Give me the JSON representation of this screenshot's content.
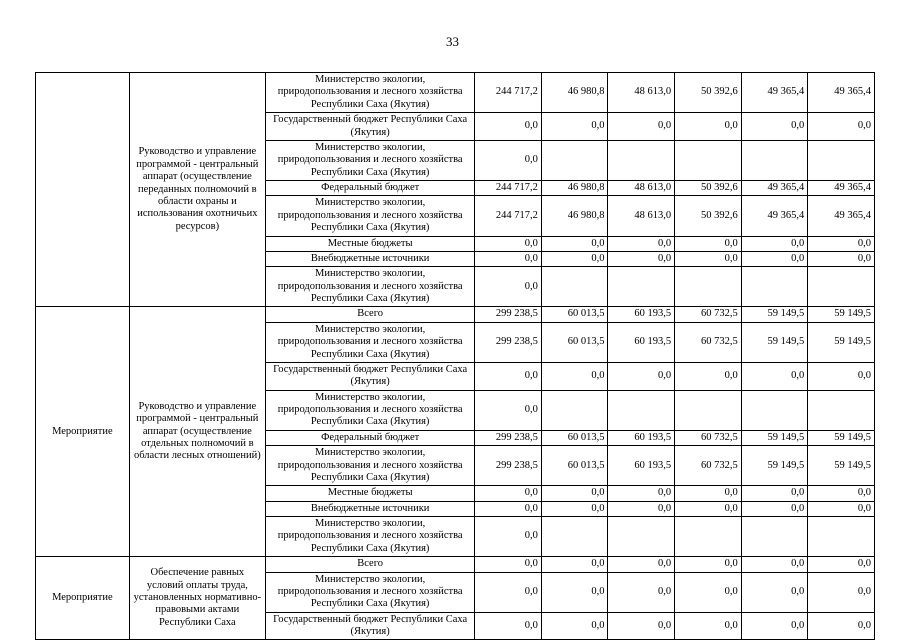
{
  "page": {
    "number": "33"
  },
  "table": {
    "blocks": [
      {
        "category": "",
        "program": "Руководство и управление программой - центральный аппарат (осуществление переданных полномочий в области охраны и использования охотничьих ресурсов)",
        "rows": [
          {
            "source": "Министерство экологии, природопользования и лесного хозяйства Республики Саха (Якутия)",
            "values": [
              "244 717,2",
              "46 980,8",
              "48 613,0",
              "50 392,6",
              "49 365,4",
              "49 365,4"
            ]
          },
          {
            "source": "Государственный бюджет Республики Саха (Якутия)",
            "values": [
              "0,0",
              "0,0",
              "0,0",
              "0,0",
              "0,0",
              "0,0"
            ]
          },
          {
            "source": "Министерство экологии, природопользования и лесного хозяйства Республики Саха (Якутия)",
            "values": [
              "0,0",
              "",
              "",
              "",
              "",
              ""
            ]
          },
          {
            "source": "Федеральный бюджет",
            "values": [
              "244 717,2",
              "46 980,8",
              "48 613,0",
              "50 392,6",
              "49 365,4",
              "49 365,4"
            ]
          },
          {
            "source": "Министерство экологии, природопользования и лесного хозяйства Республики Саха (Якутия)",
            "values": [
              "244 717,2",
              "46 980,8",
              "48 613,0",
              "50 392,6",
              "49 365,4",
              "49 365,4"
            ]
          },
          {
            "source": "Местные бюджеты",
            "values": [
              "0,0",
              "0,0",
              "0,0",
              "0,0",
              "0,0",
              "0,0"
            ]
          },
          {
            "source": "Внебюджетные источники",
            "values": [
              "0,0",
              "0,0",
              "0,0",
              "0,0",
              "0,0",
              "0,0"
            ]
          },
          {
            "source": "Министерство экологии, природопользования и лесного хозяйства Республики Саха (Якутия)",
            "values": [
              "0,0",
              "",
              "",
              "",
              "",
              ""
            ]
          }
        ]
      },
      {
        "category": "Мероприятие",
        "program": "Руководство и управление программой - центральный аппарат (осуществление отдельных полномочий в области лесных отношений)",
        "rows": [
          {
            "source": "Всего",
            "values": [
              "299 238,5",
              "60 013,5",
              "60 193,5",
              "60 732,5",
              "59 149,5",
              "59 149,5"
            ]
          },
          {
            "source": "Министерство экологии, природопользования и лесного хозяйства Республики Саха (Якутия)",
            "values": [
              "299 238,5",
              "60 013,5",
              "60 193,5",
              "60 732,5",
              "59 149,5",
              "59 149,5"
            ]
          },
          {
            "source": "Государственный бюджет Республики Саха (Якутия)",
            "values": [
              "0,0",
              "0,0",
              "0,0",
              "0,0",
              "0,0",
              "0,0"
            ]
          },
          {
            "source": "Министерство экологии, природопользования и лесного хозяйства Республики Саха (Якутия)",
            "values": [
              "0,0",
              "",
              "",
              "",
              "",
              ""
            ]
          },
          {
            "source": "Федеральный бюджет",
            "values": [
              "299 238,5",
              "60 013,5",
              "60 193,5",
              "60 732,5",
              "59 149,5",
              "59 149,5"
            ]
          },
          {
            "source": "Министерство экологии, природопользования и лесного хозяйства Республики Саха (Якутия)",
            "values": [
              "299 238,5",
              "60 013,5",
              "60 193,5",
              "60 732,5",
              "59 149,5",
              "59 149,5"
            ]
          },
          {
            "source": "Местные бюджеты",
            "values": [
              "0,0",
              "0,0",
              "0,0",
              "0,0",
              "0,0",
              "0,0"
            ]
          },
          {
            "source": "Внебюджетные источники",
            "values": [
              "0,0",
              "0,0",
              "0,0",
              "0,0",
              "0,0",
              "0,0"
            ]
          },
          {
            "source": "Министерство экологии, природопользования и лесного хозяйства Республики Саха (Якутия)",
            "values": [
              "0,0",
              "",
              "",
              "",
              "",
              ""
            ]
          }
        ]
      },
      {
        "category": "Мероприятие",
        "program": "Обеспечение равных условий оплаты труда, установленных нормативно-правовыми актами Республики Саха",
        "rows": [
          {
            "source": "Всего",
            "values": [
              "0,0",
              "0,0",
              "0,0",
              "0,0",
              "0,0",
              "0,0"
            ]
          },
          {
            "source": "Министерство экологии, природопользования и лесного хозяйства Республики Саха (Якутия)",
            "values": [
              "0,0",
              "0,0",
              "0,0",
              "0,0",
              "0,0",
              "0,0"
            ]
          },
          {
            "source": "Государственный бюджет Республики Саха (Якутия)",
            "values": [
              "0,0",
              "0,0",
              "0,0",
              "0,0",
              "0,0",
              "0,0"
            ]
          }
        ]
      }
    ]
  }
}
